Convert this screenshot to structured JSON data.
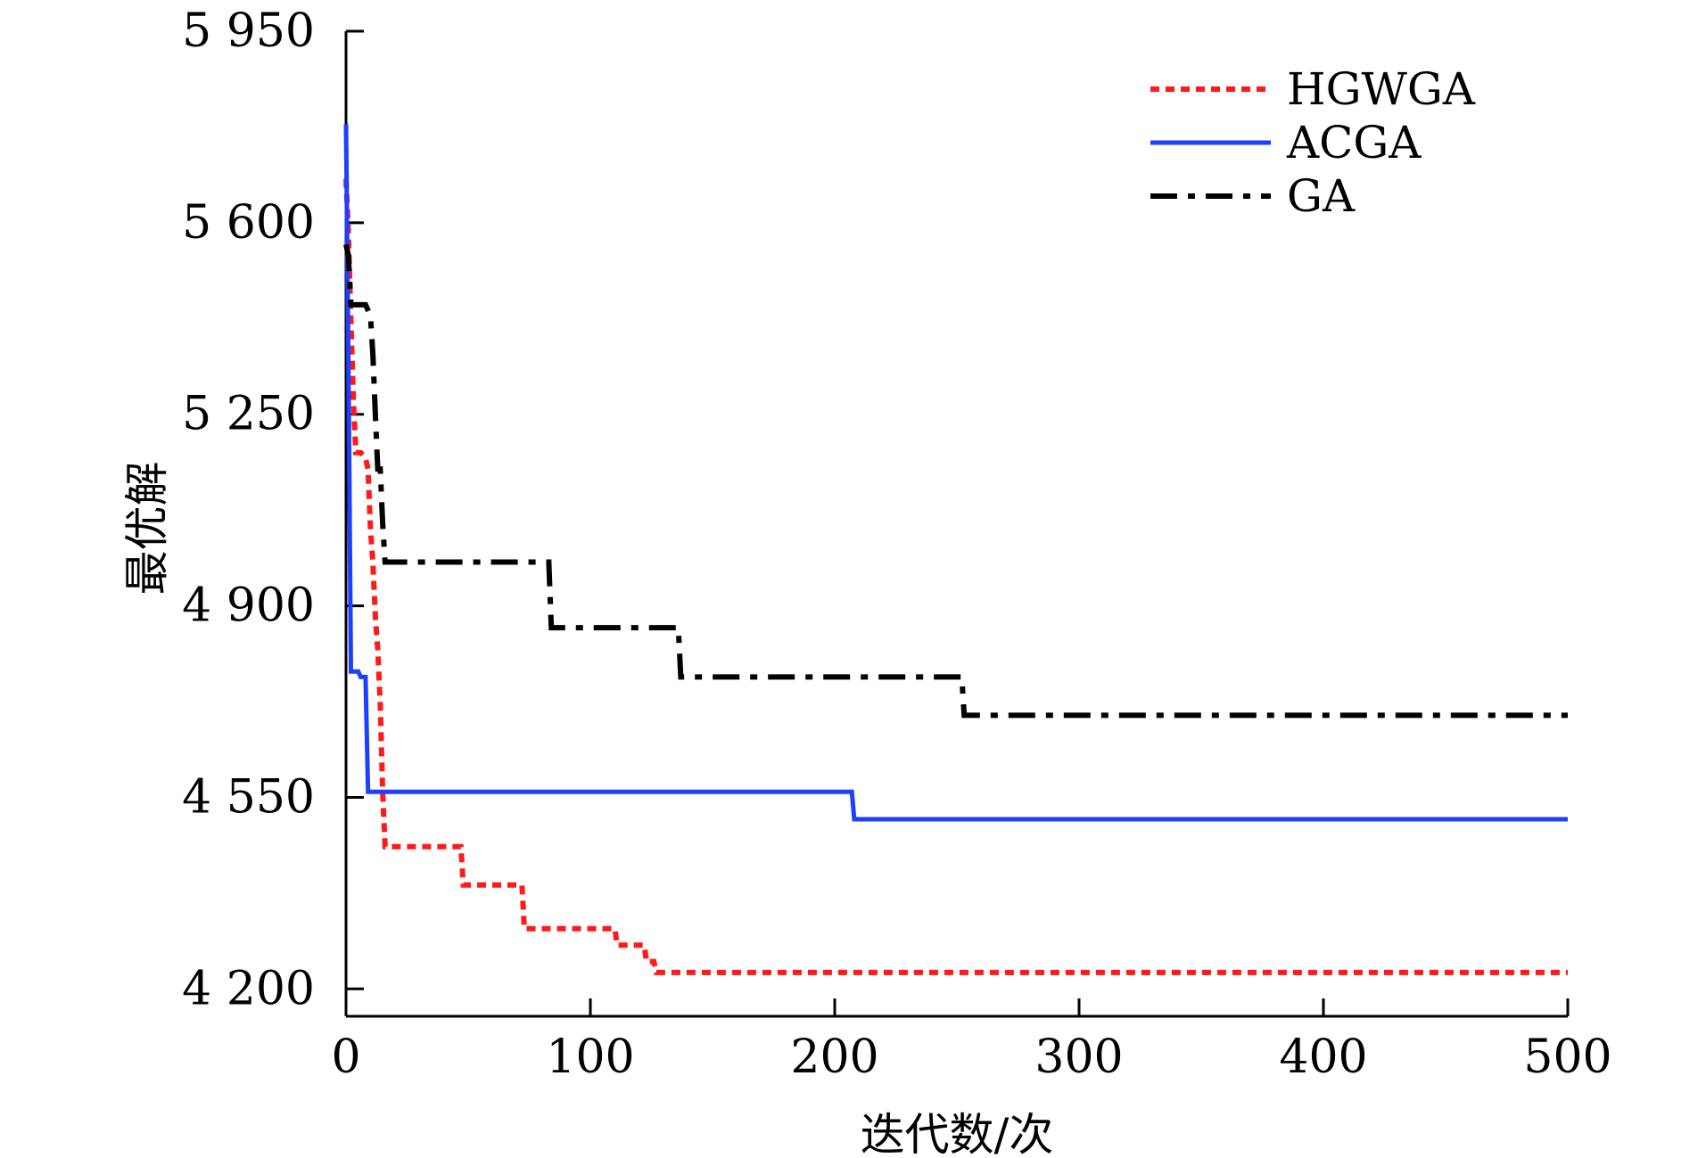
{
  "chart_data": {
    "type": "line",
    "title": "",
    "xlabel": "迭代数/次",
    "ylabel": "最优解",
    "xlim": [
      0,
      500
    ],
    "ylim": [
      4150,
      5950
    ],
    "x_ticks": [
      0,
      100,
      200,
      300,
      400,
      500
    ],
    "x_tick_labels": [
      "0",
      "100",
      "200",
      "300",
      "400",
      "500"
    ],
    "y_ticks": [
      4200,
      4550,
      4900,
      5250,
      5600,
      5950
    ],
    "y_tick_labels": [
      "4 200",
      "4 550",
      "4 900",
      "5 250",
      "5 600",
      "5 950"
    ],
    "grid": false,
    "legend_position": "top-right",
    "series": [
      {
        "name": "HGWGA",
        "color": "#ff1a1a",
        "style": "dotted",
        "x": [
          0,
          1,
          2,
          3,
          4,
          6,
          8,
          9,
          10,
          11,
          12,
          13,
          14,
          15,
          16,
          47,
          48,
          72,
          73,
          110,
          111,
          122,
          123,
          126,
          127,
          500
        ],
        "y": [
          5680,
          5580,
          5420,
          5280,
          5180,
          5180,
          5170,
          5150,
          5040,
          4980,
          4880,
          4820,
          4720,
          4560,
          4460,
          4460,
          4390,
          4390,
          4310,
          4310,
          4280,
          4280,
          4250,
          4250,
          4230,
          4230
        ]
      },
      {
        "name": "ACGA",
        "color": "#1f3fff",
        "style": "solid",
        "x": [
          0,
          1,
          2,
          5,
          6,
          8,
          9,
          207,
          208,
          500
        ],
        "y": [
          5780,
          5350,
          4780,
          4780,
          4770,
          4770,
          4560,
          4560,
          4510,
          4510
        ]
      },
      {
        "name": "GA",
        "color": "#000000",
        "style": "dashdot",
        "x": [
          0,
          1,
          2,
          8,
          9,
          10,
          11,
          12,
          13,
          14,
          15,
          16,
          83,
          84,
          85,
          136,
          137,
          138,
          252,
          253,
          254,
          500
        ],
        "y": [
          5560,
          5540,
          5450,
          5450,
          5440,
          5430,
          5360,
          5250,
          5150,
          5150,
          5050,
          4980,
          4980,
          4860,
          4860,
          4860,
          4770,
          4770,
          4770,
          4700,
          4700,
          4700
        ]
      }
    ]
  }
}
